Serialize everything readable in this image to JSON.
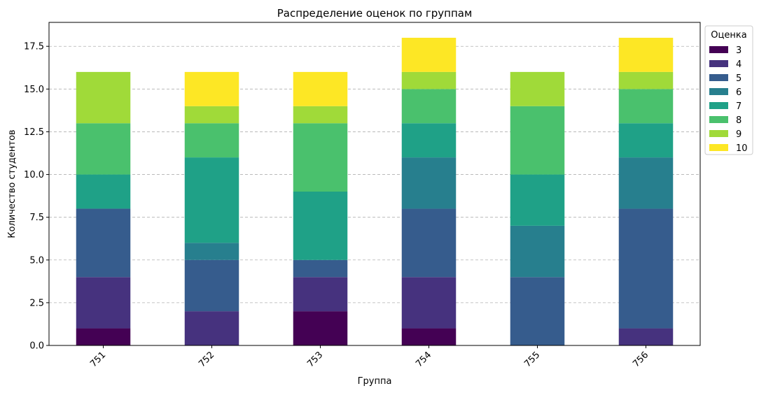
{
  "chart_data": {
    "type": "bar",
    "stacked": true,
    "title": "Распределение оценок по группам",
    "xlabel": "Группа",
    "ylabel": "Количество студентов",
    "categories": [
      "751",
      "752",
      "753",
      "754",
      "755",
      "756"
    ],
    "ylim": [
      0,
      18.9
    ],
    "yticks": [
      "0.0",
      "2.5",
      "5.0",
      "7.5",
      "10.0",
      "12.5",
      "15.0",
      "17.5"
    ],
    "grid": "y-dashed",
    "legend": {
      "title": "Оценка",
      "placement": "outside-top-right"
    },
    "series": [
      {
        "name": "3",
        "color": "#440154",
        "values": [
          1,
          0,
          2,
          1,
          0,
          0
        ]
      },
      {
        "name": "4",
        "color": "#46327e",
        "values": [
          3,
          2,
          2,
          3,
          0,
          1
        ]
      },
      {
        "name": "5",
        "color": "#365c8d",
        "values": [
          4,
          3,
          1,
          4,
          4,
          7
        ]
      },
      {
        "name": "6",
        "color": "#277f8e",
        "values": [
          0,
          1,
          0,
          3,
          3,
          3
        ]
      },
      {
        "name": "7",
        "color": "#1fa187",
        "values": [
          2,
          5,
          4,
          2,
          3,
          2
        ]
      },
      {
        "name": "8",
        "color": "#4ac16d",
        "values": [
          3,
          2,
          4,
          2,
          4,
          2
        ]
      },
      {
        "name": "9",
        "color": "#a0da39",
        "values": [
          3,
          1,
          1,
          1,
          2,
          1
        ]
      },
      {
        "name": "10",
        "color": "#fde725",
        "values": [
          0,
          2,
          2,
          2,
          0,
          2
        ]
      }
    ]
  }
}
